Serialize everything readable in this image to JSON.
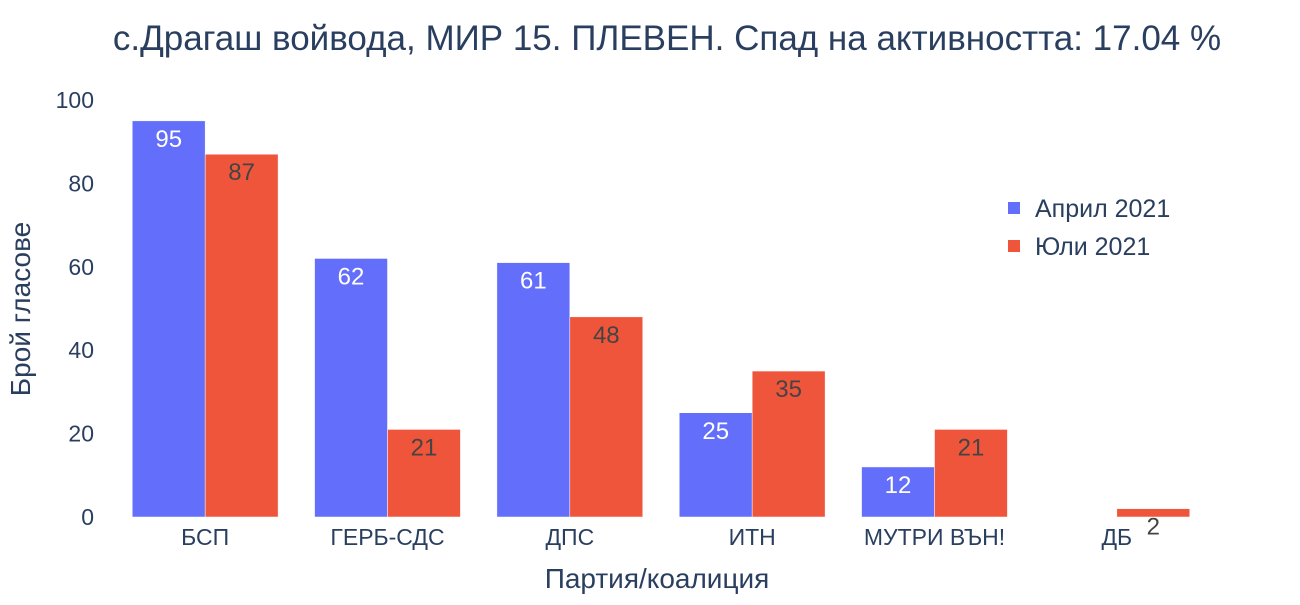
{
  "chart_data": {
    "type": "bar",
    "title": "с.Драгаш войвода, МИР 15. ПЛЕВЕН. Спад на активността: 17.04 %",
    "xlabel": "Партия/коалиция",
    "ylabel": "Брой гласове",
    "categories": [
      "БСП",
      "ГЕРБ-СДС",
      "ДПС",
      "ИТН",
      "МУТРИ ВЪН!",
      "ДБ"
    ],
    "series": [
      {
        "name": "Април 2021",
        "color": "#636efa",
        "label_color": "#ffffff",
        "values": [
          95,
          62,
          61,
          25,
          12,
          0
        ],
        "labels": [
          "95",
          "62",
          "61",
          "25",
          "12",
          ""
        ]
      },
      {
        "name": "Юли 2021",
        "color": "#ef553b",
        "label_color": "#444444",
        "values": [
          87,
          21,
          48,
          35,
          21,
          2
        ],
        "labels": [
          "87",
          "21",
          "48",
          "35",
          "21",
          "2"
        ]
      }
    ],
    "ylim": [
      0,
      100
    ],
    "yticks": [
      0,
      20,
      40,
      60,
      80,
      100
    ],
    "grid": false,
    "legend_position": "right"
  }
}
